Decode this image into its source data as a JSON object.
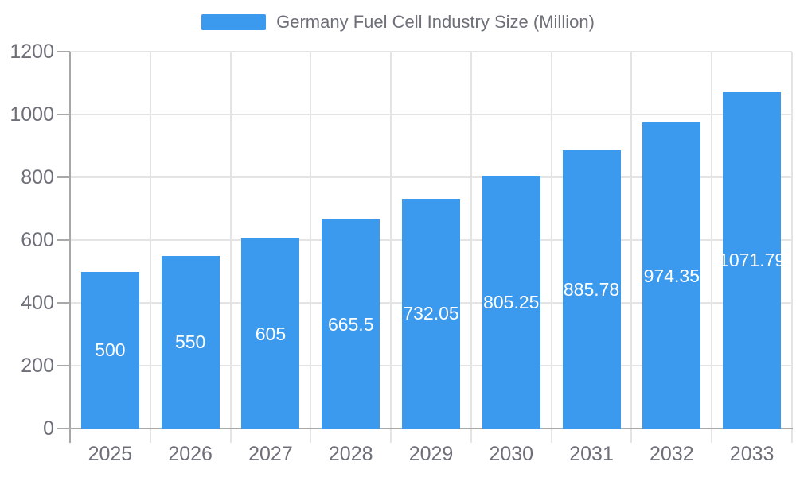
{
  "legend": {
    "label": "Germany Fuel Cell Industry Size (Million)"
  },
  "colors": {
    "bar": "#3B9AEE",
    "axis_line": "#A8A8A8",
    "grid_line": "#E4E4E4",
    "tick_text": "#6E7079",
    "legend_text": "#6E7079",
    "bar_label_text": "#FFFFFF",
    "background": "#FFFFFF"
  },
  "chart_data": {
    "type": "bar",
    "title": "Germany Fuel Cell Industry Size (Million)",
    "categories": [
      "2025",
      "2026",
      "2027",
      "2028",
      "2029",
      "2030",
      "2031",
      "2032",
      "2033"
    ],
    "values": [
      500,
      550,
      605,
      665.5,
      732.05,
      805.25,
      885.78,
      974.35,
      1071.79
    ],
    "value_labels": [
      "500",
      "550",
      "605",
      "665.5",
      "732.05",
      "805.25",
      "885.78",
      "974.35",
      "1071.79"
    ],
    "series_name": "Germany Fuel Cell Industry Size (Million)",
    "xlabel": "",
    "ylabel": "",
    "ylim": [
      0,
      1200
    ],
    "yticks": [
      0,
      200,
      400,
      600,
      800,
      1000,
      1200
    ],
    "grid": true,
    "legend_position": "top-center"
  }
}
